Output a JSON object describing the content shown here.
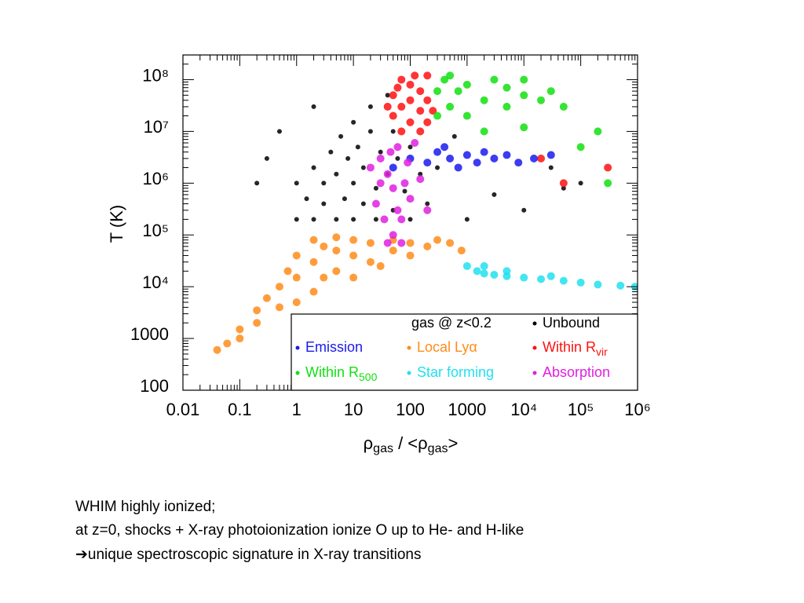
{
  "chart_data": {
    "type": "scatter",
    "x_label": [
      "ρ",
      "gas",
      " / <ρ",
      "gas",
      ">"
    ],
    "y_label": "T (K)",
    "xscale": "log",
    "yscale": "log",
    "xlim": [
      0.01,
      1000000
    ],
    "ylim": [
      100,
      300000000
    ],
    "xticks": [
      0.01,
      0.1,
      1,
      10,
      100,
      1000,
      {
        "value": 10000,
        "label": "10⁴"
      },
      {
        "value": 100000,
        "label": "10⁵"
      },
      {
        "value": 1000000,
        "label": "10⁶"
      }
    ],
    "yticks": [
      100,
      1000,
      {
        "value": 10000,
        "label": "10⁴"
      },
      {
        "value": 100000,
        "label": "10⁵"
      },
      {
        "value": 1000000,
        "label": "10⁶"
      },
      {
        "value": 10000000,
        "label": "10⁷"
      },
      {
        "value": 100000000,
        "label": "10⁸"
      }
    ],
    "legend": {
      "title": "gas @ z<0.2",
      "position": "lower right"
    },
    "series": [
      {
        "name": "Local Lyα",
        "color": "#ff8c1a",
        "x": [
          0.04,
          0.06,
          0.1,
          0.1,
          0.2,
          0.2,
          0.3,
          0.5,
          0.5,
          0.7,
          1,
          1,
          1,
          2,
          2,
          2,
          3,
          3,
          5,
          5,
          5,
          10,
          10,
          10,
          20,
          20,
          30,
          50,
          50,
          100,
          100,
          200,
          300,
          500,
          800
        ],
        "y": [
          600,
          800,
          1000,
          1500,
          2000,
          3500,
          6000,
          4000,
          10000,
          20000,
          5000,
          15000,
          40000,
          8000,
          30000,
          80000,
          15000,
          60000,
          20000,
          50000,
          90000,
          15000,
          40000,
          80000,
          30000,
          70000,
          25000,
          50000,
          80000,
          40000,
          70000,
          60000,
          80000,
          70000,
          50000
        ]
      },
      {
        "name": "Unbound",
        "color": "#000000",
        "x": [
          1,
          1,
          1.5,
          2,
          2,
          3,
          3,
          4,
          5,
          5,
          6,
          7,
          8,
          10,
          10,
          10,
          12,
          15,
          15,
          20,
          20,
          25,
          25,
          30,
          40,
          40,
          50,
          50,
          60,
          80,
          100,
          100,
          150,
          200,
          300,
          0.3,
          0.5,
          0.2,
          2,
          1000,
          3000,
          10000,
          30000,
          100000,
          50000,
          600
        ],
        "y": [
          200000,
          1000000,
          500000,
          200000,
          2000000,
          1000000,
          400000,
          4000000,
          200000,
          1500000,
          8000000,
          500000,
          3000000,
          200000,
          1000000,
          15000000,
          5000000,
          400000,
          2000000,
          30000000,
          10000000,
          200000,
          800000,
          4000000,
          1500000,
          50000000,
          300000,
          10000000,
          3000000,
          700000,
          200000,
          5000000,
          1500000,
          400000,
          2000000,
          3000000,
          10000000,
          1000000,
          30000000,
          200000,
          600000,
          300000,
          2000000,
          1000000,
          800000,
          8000000
        ]
      },
      {
        "name": "Star forming",
        "color": "#22e0f0",
        "x": [
          1000,
          1500,
          2000,
          3000,
          5000,
          10000,
          20000,
          50000,
          100000,
          200000,
          500000,
          900000,
          2000,
          5000,
          30000
        ],
        "y": [
          25000,
          20000,
          18000,
          17000,
          16000,
          15000,
          14000,
          13000,
          12000,
          11000,
          10500,
          10000,
          25000,
          20000,
          16000
        ]
      },
      {
        "name": "Within R",
        "name_sub": "vir",
        "color": "#ff1010",
        "x": [
          50,
          50,
          70,
          70,
          70,
          100,
          100,
          100,
          150,
          150,
          150,
          200,
          200,
          200,
          60,
          120,
          250,
          40,
          20000,
          50000,
          300000
        ],
        "y": [
          20000000,
          50000000,
          10000000,
          30000000,
          100000000,
          15000000,
          40000000,
          80000000,
          10000000,
          25000000,
          60000000,
          15000000,
          40000000,
          120000000,
          70000000,
          120000000,
          25000000,
          30000000,
          3000000,
          1000000,
          2000000
        ]
      },
      {
        "name": "Within R",
        "name_sub": "500",
        "color": "#10e010",
        "x": [
          300,
          300,
          400,
          500,
          700,
          1000,
          1000,
          2000,
          3000,
          5000,
          5000,
          10000,
          20000,
          30000,
          10000,
          500,
          2000,
          10000,
          50000,
          100000,
          300000,
          200000
        ],
        "y": [
          20000000,
          60000000,
          100000000,
          30000000,
          60000000,
          20000000,
          80000000,
          40000000,
          100000000,
          30000000,
          70000000,
          50000000,
          40000000,
          60000000,
          100000000,
          120000000,
          10000000,
          12000000,
          30000000,
          5000000,
          1000000,
          10000000
        ]
      },
      {
        "name": "Emission",
        "color": "#1a1aee",
        "x": [
          100,
          200,
          300,
          500,
          700,
          1000,
          1500,
          2000,
          3000,
          5000,
          8000,
          15000,
          30000,
          50,
          400
        ],
        "y": [
          3000000,
          2500000,
          4000000,
          3000000,
          2000000,
          3500000,
          2500000,
          4000000,
          3000000,
          3500000,
          2500000,
          3000000,
          3500000,
          2000000,
          5000000
        ]
      },
      {
        "name": "Absorption",
        "color": "#e020e0",
        "x": [
          30,
          40,
          50,
          60,
          80,
          100,
          20,
          30,
          70,
          150,
          25,
          45,
          90,
          40,
          70,
          50,
          35,
          200,
          120,
          60
        ],
        "y": [
          3000000,
          1500000,
          800000,
          300000,
          1000000,
          500000,
          2000000,
          1000000,
          200000,
          1200000,
          400000,
          4000000,
          2500000,
          70000,
          70000,
          100000,
          200000,
          300000,
          6000000,
          5000000
        ]
      }
    ]
  },
  "caption": [
    "WHIM highly ionized;",
    "at z=0, shocks + X-ray photoionization ionize O up to He- and H-like",
    "➔unique spectroscopic signature in X-ray transitions"
  ]
}
